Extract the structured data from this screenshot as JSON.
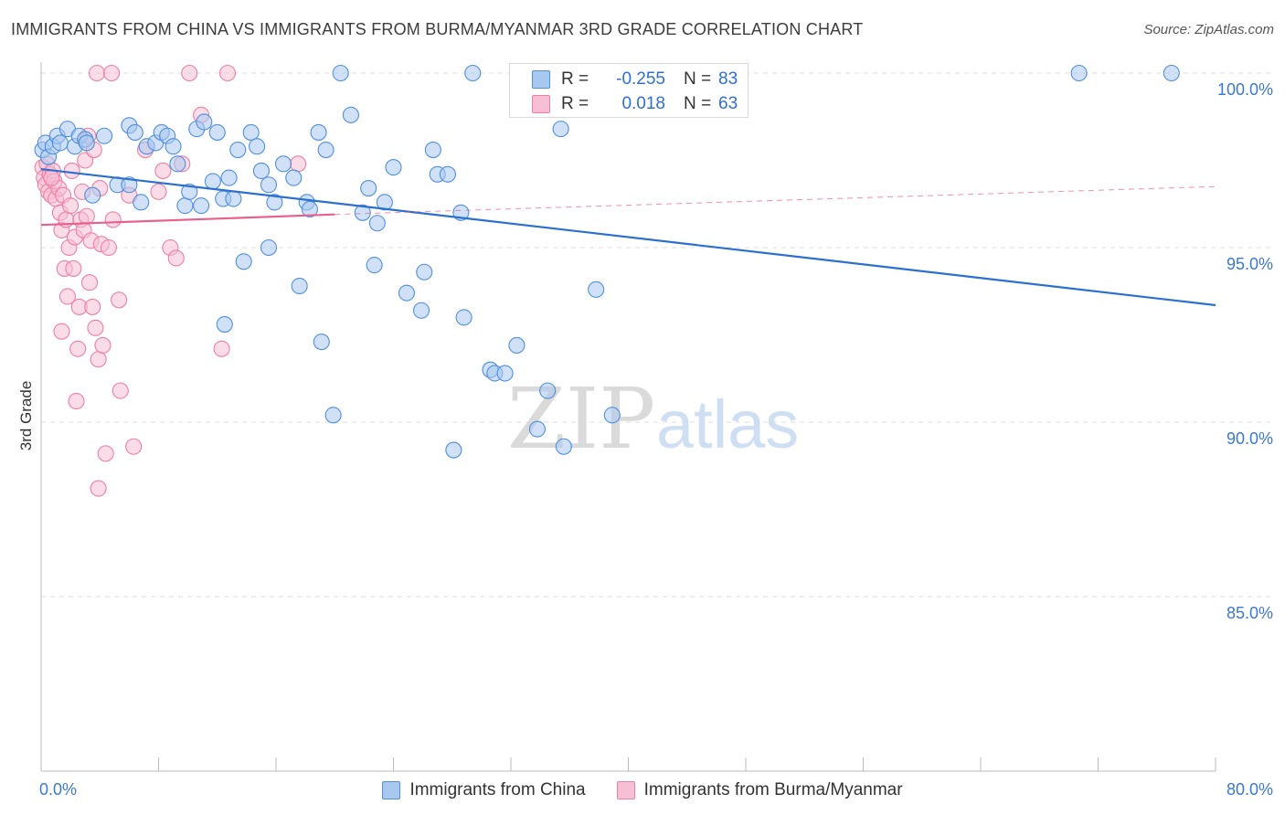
{
  "title": "IMMIGRANTS FROM CHINA VS IMMIGRANTS FROM BURMA/MYANMAR 3RD GRADE CORRELATION CHART",
  "source": "Source: ZipAtlas.com",
  "watermark": {
    "zip": "ZIP",
    "atlas": "atlas"
  },
  "colors": {
    "blue": "#4f8fde",
    "blue_fill": "#a9c8f0",
    "blue_line": "#2b6fd1",
    "pink": "#ee7fa4",
    "pink_fill": "#f6bfd3",
    "pink_line": "#e8608c",
    "axis_text": "#3b78cf",
    "grid": "#dedede"
  },
  "stats": [
    {
      "r_label": "R =",
      "r_value": "-0.255",
      "n_label": "N =",
      "n_value": "83"
    },
    {
      "r_label": "R =",
      "r_value": "0.018",
      "n_label": "N =",
      "n_value": "63"
    }
  ],
  "legend": {
    "china": "Immigrants from China",
    "burma": "Immigrants from Burma/Myanmar"
  },
  "chart_data": {
    "type": "scatter",
    "title": "IMMIGRANTS FROM CHINA VS IMMIGRANTS FROM BURMA/MYANMAR 3RD GRADE CORRELATION CHART",
    "xlabel": "",
    "ylabel": "3rd Grade",
    "xlim": [
      0,
      80
    ],
    "ylim": [
      80,
      100.6
    ],
    "x_tick_labels": [
      "0.0%",
      "80.0%"
    ],
    "y_ticks": [
      85,
      90,
      95,
      100
    ],
    "y_tick_labels": [
      "85.0%",
      "90.0%",
      "95.0%",
      "100.0%"
    ],
    "grid": true,
    "series": [
      {
        "name": "Immigrants from China",
        "trend": {
          "x": [
            0,
            80
          ],
          "y": [
            97.25,
            93.35
          ]
        },
        "points": [
          [
            0.1,
            97.8
          ],
          [
            0.3,
            98.0
          ],
          [
            0.5,
            97.6
          ],
          [
            0.8,
            97.9
          ],
          [
            1.1,
            98.2
          ],
          [
            1.3,
            98.0
          ],
          [
            1.8,
            98.4
          ],
          [
            2.3,
            97.9
          ],
          [
            2.6,
            98.2
          ],
          [
            3.0,
            98.1
          ],
          [
            3.5,
            96.5
          ],
          [
            4.3,
            98.2
          ],
          [
            5.2,
            96.8
          ],
          [
            6.0,
            98.5
          ],
          [
            6.4,
            98.3
          ],
          [
            6.8,
            96.3
          ],
          [
            7.2,
            97.9
          ],
          [
            7.8,
            98.0
          ],
          [
            8.2,
            98.3
          ],
          [
            8.6,
            98.2
          ],
          [
            9.0,
            97.9
          ],
          [
            9.3,
            97.4
          ],
          [
            9.8,
            96.2
          ],
          [
            10.1,
            96.6
          ],
          [
            10.6,
            98.4
          ],
          [
            10.9,
            96.2
          ],
          [
            11.1,
            98.6
          ],
          [
            11.7,
            96.9
          ],
          [
            12.0,
            98.3
          ],
          [
            12.4,
            96.4
          ],
          [
            12.8,
            97.0
          ],
          [
            13.1,
            96.4
          ],
          [
            13.4,
            97.8
          ],
          [
            13.8,
            94.6
          ],
          [
            14.3,
            98.3
          ],
          [
            14.7,
            97.9
          ],
          [
            15.0,
            97.2
          ],
          [
            15.5,
            96.8
          ],
          [
            15.9,
            96.3
          ],
          [
            16.5,
            97.4
          ],
          [
            17.2,
            97.0
          ],
          [
            17.6,
            93.9
          ],
          [
            18.1,
            96.3
          ],
          [
            18.3,
            96.1
          ],
          [
            18.9,
            98.3
          ],
          [
            19.1,
            92.3
          ],
          [
            19.4,
            97.8
          ],
          [
            19.9,
            90.2
          ],
          [
            20.4,
            100.0
          ],
          [
            21.1,
            98.8
          ],
          [
            21.9,
            96.0
          ],
          [
            22.3,
            96.7
          ],
          [
            22.7,
            94.5
          ],
          [
            22.9,
            95.7
          ],
          [
            23.4,
            96.3
          ],
          [
            24.0,
            97.3
          ],
          [
            24.9,
            93.7
          ],
          [
            25.9,
            93.2
          ],
          [
            26.1,
            94.3
          ],
          [
            26.7,
            97.8
          ],
          [
            27.0,
            97.1
          ],
          [
            27.7,
            97.1
          ],
          [
            28.1,
            89.2
          ],
          [
            28.6,
            96.0
          ],
          [
            28.8,
            93.0
          ],
          [
            29.4,
            100.0
          ],
          [
            30.6,
            91.5
          ],
          [
            30.9,
            91.4
          ],
          [
            31.6,
            91.4
          ],
          [
            32.4,
            92.2
          ],
          [
            33.1,
            100.0
          ],
          [
            33.8,
            89.8
          ],
          [
            34.5,
            90.9
          ],
          [
            35.4,
            98.4
          ],
          [
            35.6,
            89.3
          ],
          [
            37.8,
            93.8
          ],
          [
            38.9,
            90.2
          ],
          [
            70.7,
            100.0
          ],
          [
            77.0,
            100.0
          ],
          [
            15.5,
            95.0
          ],
          [
            12.5,
            92.8
          ],
          [
            6.0,
            96.8
          ],
          [
            3.1,
            98.0
          ]
        ]
      },
      {
        "name": "Immigrants from Burma/Myanmar",
        "trend": {
          "x": [
            0,
            20
          ],
          "y": [
            95.65,
            95.95
          ]
        },
        "trend_extended": {
          "x": [
            20,
            80
          ],
          "y": [
            95.95,
            96.75
          ]
        },
        "points": [
          [
            0.1,
            97.3
          ],
          [
            0.2,
            97.0
          ],
          [
            0.3,
            96.8
          ],
          [
            0.4,
            97.4
          ],
          [
            0.5,
            96.6
          ],
          [
            0.6,
            97.1
          ],
          [
            0.7,
            96.5
          ],
          [
            0.8,
            97.2
          ],
          [
            0.9,
            96.9
          ],
          [
            1.0,
            96.4
          ],
          [
            1.2,
            96.7
          ],
          [
            1.3,
            96.0
          ],
          [
            1.4,
            95.5
          ],
          [
            1.5,
            96.5
          ],
          [
            1.6,
            94.4
          ],
          [
            1.7,
            95.8
          ],
          [
            1.8,
            93.6
          ],
          [
            1.9,
            95.0
          ],
          [
            2.0,
            96.2
          ],
          [
            2.1,
            97.2
          ],
          [
            2.2,
            94.4
          ],
          [
            2.3,
            95.3
          ],
          [
            2.5,
            92.1
          ],
          [
            2.6,
            93.3
          ],
          [
            2.7,
            95.8
          ],
          [
            2.8,
            96.6
          ],
          [
            2.9,
            95.5
          ],
          [
            3.0,
            97.5
          ],
          [
            3.1,
            95.9
          ],
          [
            3.2,
            98.2
          ],
          [
            3.3,
            94.0
          ],
          [
            3.4,
            95.2
          ],
          [
            3.5,
            93.3
          ],
          [
            3.6,
            97.8
          ],
          [
            3.7,
            92.7
          ],
          [
            3.9,
            91.8
          ],
          [
            4.0,
            96.7
          ],
          [
            4.1,
            95.1
          ],
          [
            4.2,
            92.2
          ],
          [
            4.4,
            89.1
          ],
          [
            4.6,
            95.0
          ],
          [
            4.9,
            95.8
          ],
          [
            5.3,
            93.5
          ],
          [
            5.4,
            90.9
          ],
          [
            6.0,
            96.5
          ],
          [
            6.3,
            89.3
          ],
          [
            7.1,
            97.8
          ],
          [
            8.0,
            96.6
          ],
          [
            8.3,
            97.2
          ],
          [
            8.8,
            95.0
          ],
          [
            9.2,
            94.7
          ],
          [
            9.6,
            97.4
          ],
          [
            10.1,
            100.0
          ],
          [
            10.9,
            98.8
          ],
          [
            12.3,
            92.1
          ],
          [
            12.7,
            100.0
          ],
          [
            17.5,
            97.4
          ],
          [
            3.8,
            100.0
          ],
          [
            4.8,
            100.0
          ],
          [
            1.4,
            92.6
          ],
          [
            3.9,
            88.1
          ],
          [
            2.4,
            90.6
          ],
          [
            0.7,
            97.0
          ]
        ]
      }
    ]
  }
}
